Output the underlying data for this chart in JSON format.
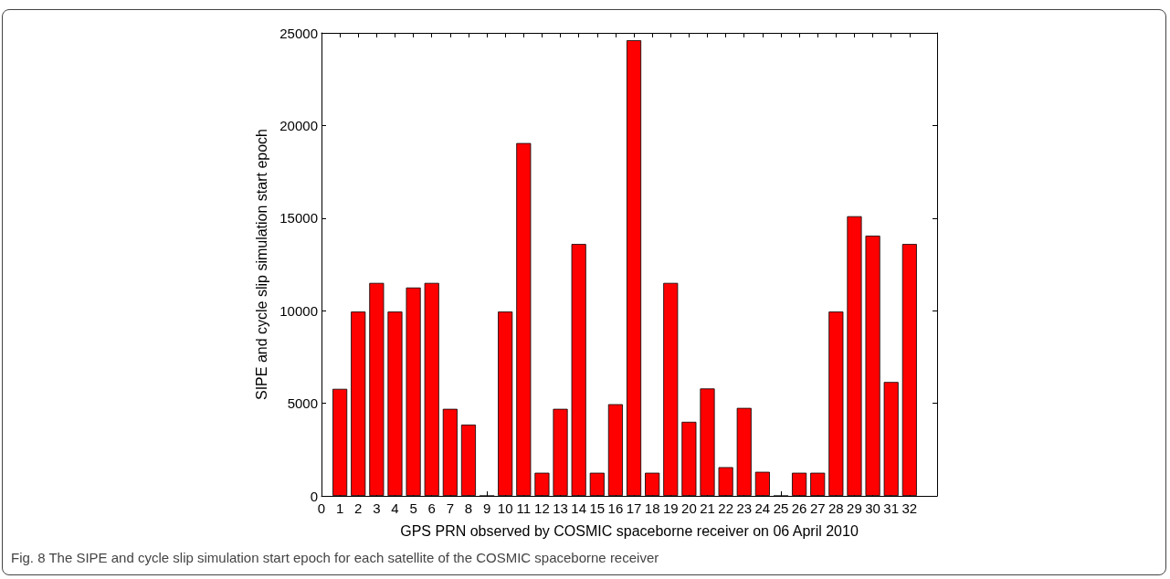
{
  "chart_data": {
    "type": "bar",
    "xlabel": "GPS PRN observed by COSMIC spaceborne receiver on 06 April 2010",
    "ylabel": "SIPE and cycle slip simulation start epoch",
    "annotations": [
      "Fig. 8 The SIPE and cycle slip simulation start epoch for each satellite of the COSMIC spaceborne receiver"
    ],
    "x": [
      1,
      2,
      3,
      4,
      5,
      6,
      7,
      8,
      9,
      10,
      11,
      12,
      13,
      14,
      15,
      16,
      17,
      18,
      19,
      20,
      21,
      22,
      23,
      24,
      25,
      26,
      27,
      28,
      29,
      30,
      31,
      32
    ],
    "values": [
      5780,
      9950,
      11500,
      9950,
      11250,
      11500,
      4700,
      3850,
      0,
      9950,
      19050,
      1250,
      4700,
      13600,
      1250,
      4950,
      24600,
      1250,
      11500,
      4000,
      5800,
      1550,
      4750,
      1300,
      0,
      1250,
      1250,
      9950,
      15100,
      14050,
      6150,
      13600
    ],
    "color": "#ff0000",
    "xlim": [
      0,
      33.5
    ],
    "xticks": [
      0,
      1,
      2,
      3,
      4,
      5,
      6,
      7,
      8,
      9,
      10,
      11,
      12,
      13,
      14,
      15,
      16,
      17,
      18,
      19,
      20,
      21,
      22,
      23,
      24,
      25,
      26,
      27,
      28,
      29,
      30,
      31,
      32
    ],
    "ylim": [
      0,
      25000
    ],
    "yticks": [
      0,
      5000,
      10000,
      15000,
      20000,
      25000
    ],
    "grid": false
  }
}
